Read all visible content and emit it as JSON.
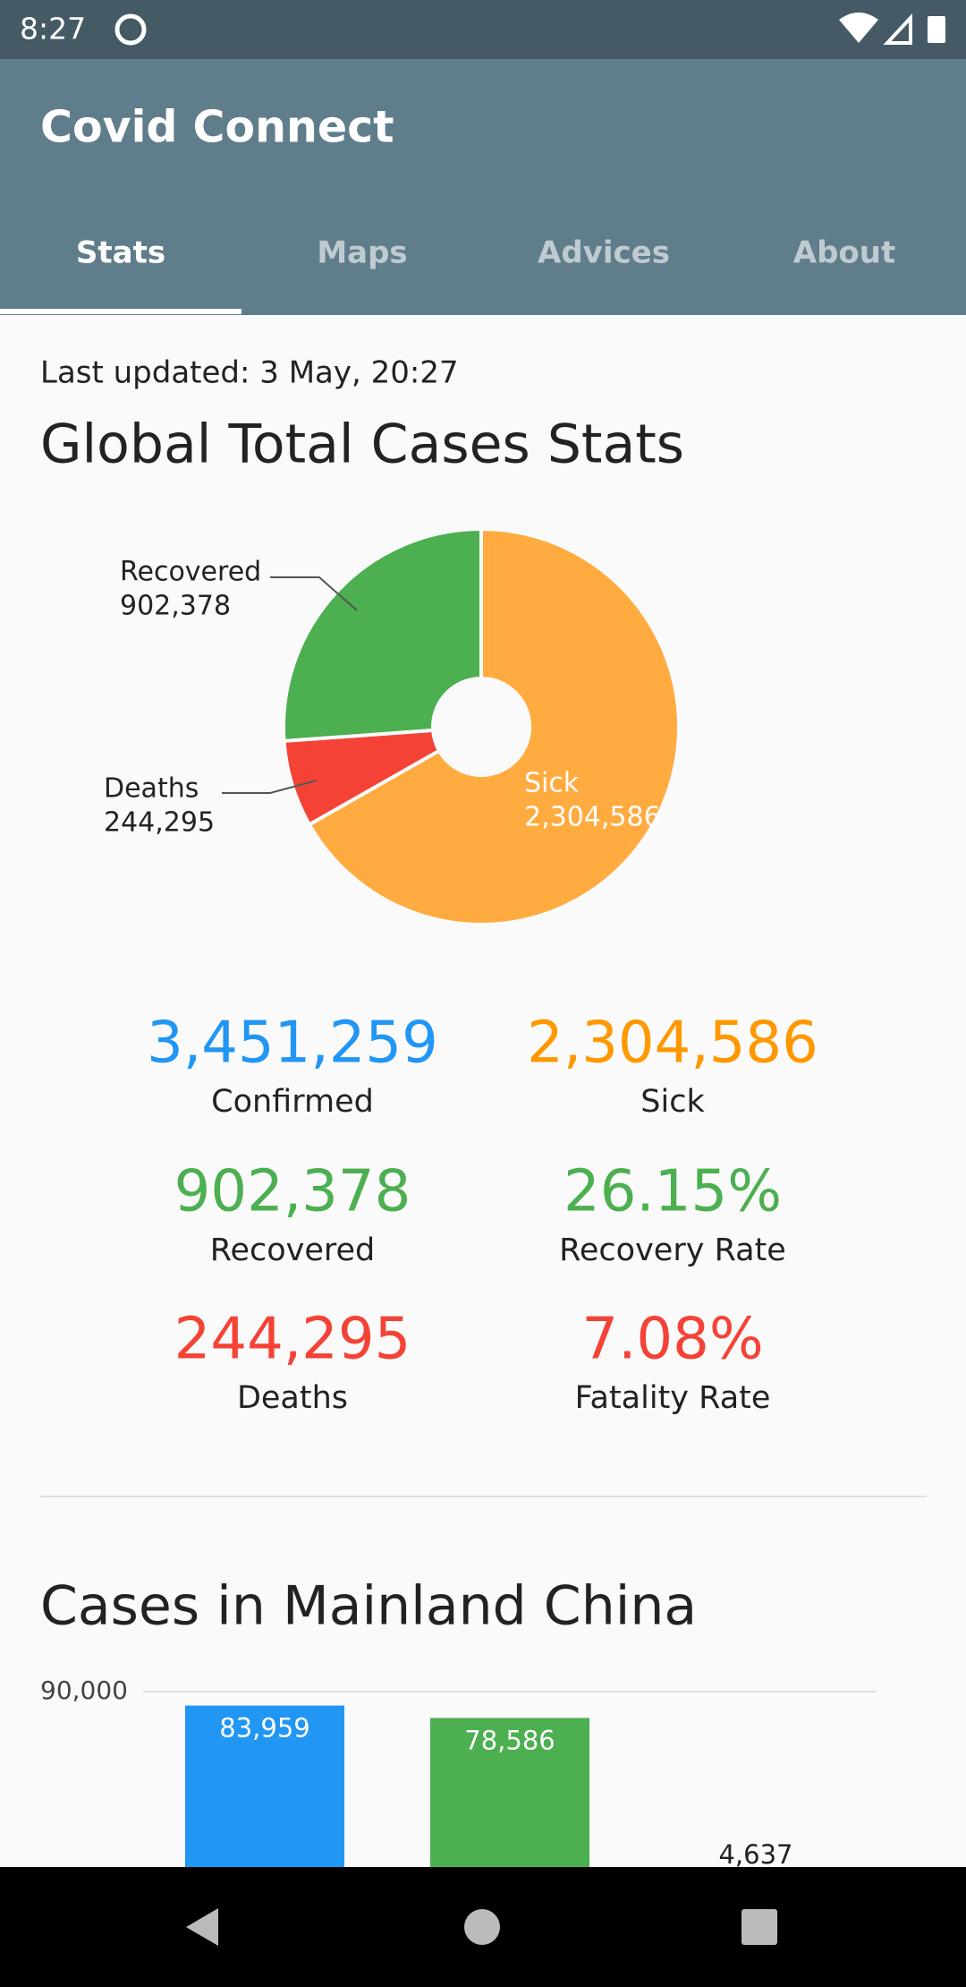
{
  "status_bar": {
    "time": "8:27"
  },
  "app_bar": {
    "title": "Covid Connect",
    "tabs": [
      "Stats",
      "Maps",
      "Advices",
      "About"
    ],
    "selected_tab": 0
  },
  "stats": {
    "last_updated": "Last updated: 3 May, 20:27",
    "title": "Global Total Cases Stats",
    "items": [
      {
        "value": "3,451,259",
        "label": "Confirmed",
        "color": "#2196f3"
      },
      {
        "value": "2,304,586",
        "label": "Sick",
        "color": "#ff9800"
      },
      {
        "value": "902,378",
        "label": "Recovered",
        "color": "#4caf50"
      },
      {
        "value": "26.15%",
        "label": "Recovery Rate",
        "color": "#4caf50"
      },
      {
        "value": "244,295",
        "label": "Deaths",
        "color": "#f44336"
      },
      {
        "value": "7.08%",
        "label": "Fatality Rate",
        "color": "#f44336"
      }
    ]
  },
  "pie_chart": {
    "type": "pie",
    "categories": [
      "Sick",
      "Deaths",
      "Recovered"
    ],
    "values": [
      2304586,
      244295,
      902378
    ],
    "value_labels": [
      "2,304,586",
      "244,295",
      "902,378"
    ],
    "colors": [
      "#ffab40",
      "#f44336",
      "#4caf50"
    ]
  },
  "bar_chart": {
    "type": "bar",
    "title": "Cases in Mainland China",
    "categories": [
      null,
      null,
      null
    ],
    "values": [
      83959,
      78586,
      4637
    ],
    "value_labels": [
      "83,959",
      "78,586",
      "4,637"
    ],
    "colors": [
      "#2196f3",
      "#4caf50",
      "#f44336"
    ],
    "ylim": [
      0,
      90000
    ],
    "yticks": [
      {
        "value": 90000,
        "label": "90,000"
      }
    ],
    "grid": true
  }
}
